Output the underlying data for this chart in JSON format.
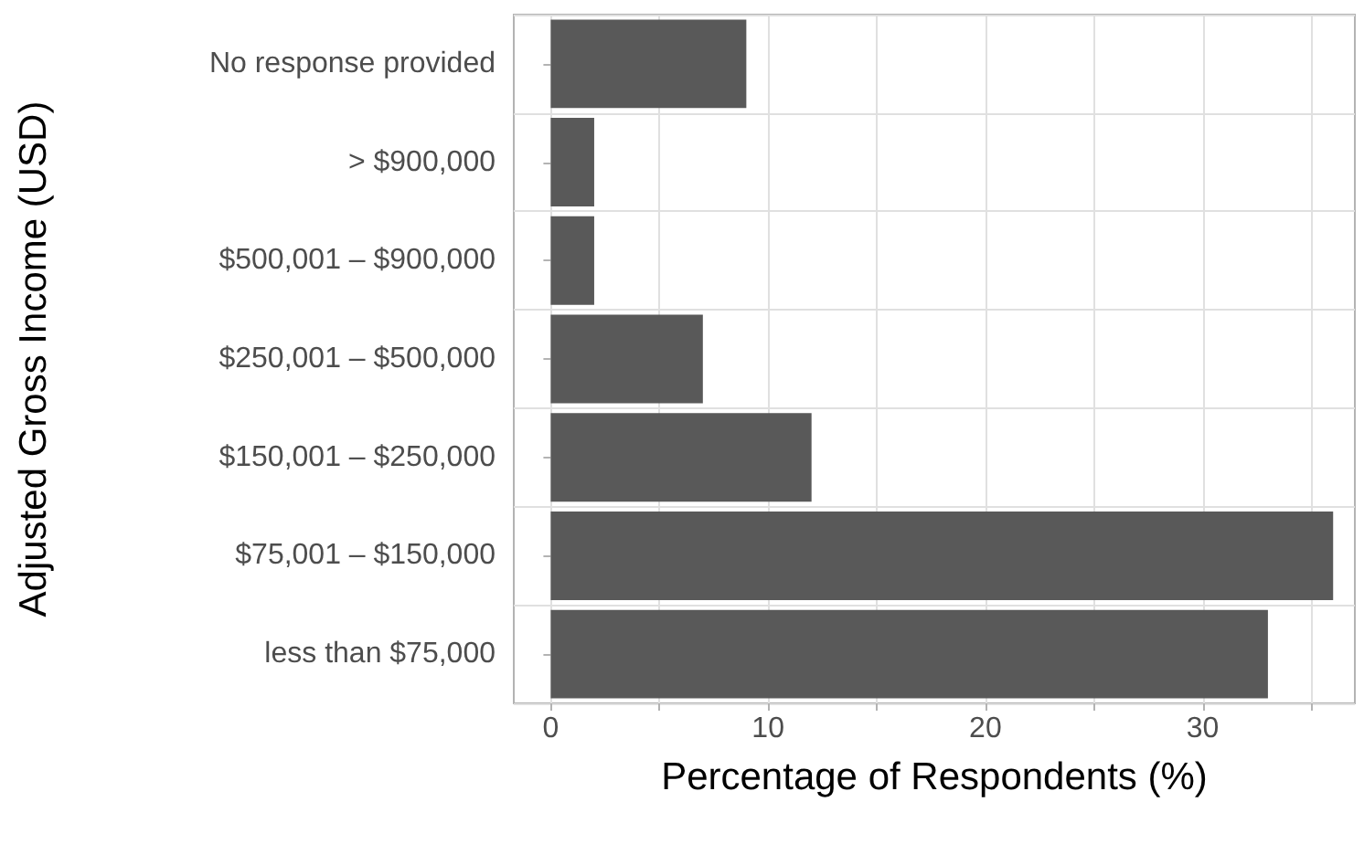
{
  "chart_data": {
    "type": "bar",
    "orientation": "horizontal",
    "xlabel": "Percentage of Respondents (%)",
    "ylabel": "Adjusted Gross Income (USD)",
    "categories": [
      "No response provided",
      "> $900,000",
      "$500,001 – $900,000",
      "$250,001 – $500,000",
      "$150,001 – $250,000",
      "$75,001 – $150,000",
      "less than $75,000"
    ],
    "values": [
      9,
      2,
      2,
      7,
      12,
      36,
      33
    ],
    "color": "#595959",
    "xlim": [
      -1.7,
      37
    ],
    "xticks": [
      0,
      {
        "value": 5,
        "label": null
      },
      10,
      {
        "value": 15,
        "label": null
      },
      20,
      {
        "value": 25,
        "label": null
      },
      30,
      {
        "value": 35,
        "label": null
      }
    ],
    "grid": true
  }
}
